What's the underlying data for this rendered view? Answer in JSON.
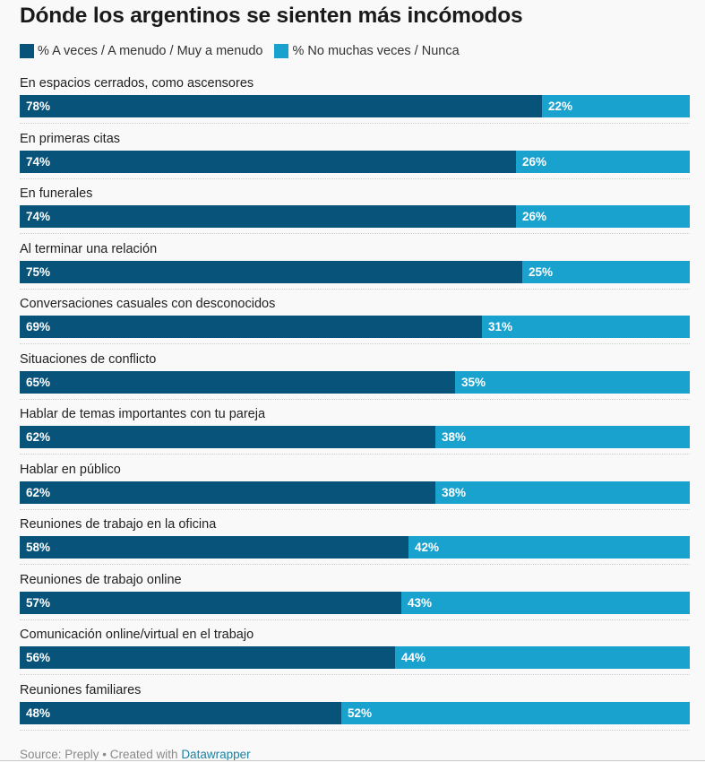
{
  "chart_data": {
    "type": "bar",
    "orientation": "horizontal",
    "stacked": true,
    "title": "Dónde los argentinos se sienten más incómodos",
    "legend": [
      {
        "name": "% A veces / A menudo / Muy a menudo",
        "color": "#07537a"
      },
      {
        "name": "% No muchas veces / Nunca",
        "color": "#1aa2cf"
      }
    ],
    "categories": [
      "En espacios cerrados, como ascensores",
      "En primeras citas",
      "En funerales",
      "Al terminar una relación",
      "Conversaciones casuales con desconocidos",
      "Situaciones de conflicto",
      "Hablar de temas importantes con tu pareja",
      "Hablar en público",
      "Reuniones de trabajo en la oficina",
      "Reuniones de trabajo online",
      "Comunicación online/virtual en el trabajo",
      "Reuniones familiares"
    ],
    "series": [
      {
        "name": "% A veces / A menudo / Muy a menudo",
        "color": "#07537a",
        "values": [
          78,
          74,
          74,
          75,
          69,
          65,
          62,
          62,
          58,
          57,
          56,
          48
        ],
        "labels": [
          "78%",
          "74%",
          "74%",
          "75%",
          "69%",
          "65%",
          "62%",
          "62%",
          "58%",
          "57%",
          "56%",
          "48%"
        ]
      },
      {
        "name": "% No muchas veces / Nunca",
        "color": "#1aa2cf",
        "values": [
          22,
          26,
          26,
          25,
          31,
          35,
          38,
          38,
          42,
          43,
          44,
          52
        ],
        "labels": [
          "22%",
          "26%",
          "26%",
          "25%",
          "31%",
          "35%",
          "38%",
          "38%",
          "42%",
          "43%",
          "44%",
          "52%"
        ]
      }
    ],
    "xlim": [
      0,
      100
    ]
  },
  "footer": {
    "source_text": "Source: Preply • Created with ",
    "link_text": "Datawrapper"
  }
}
